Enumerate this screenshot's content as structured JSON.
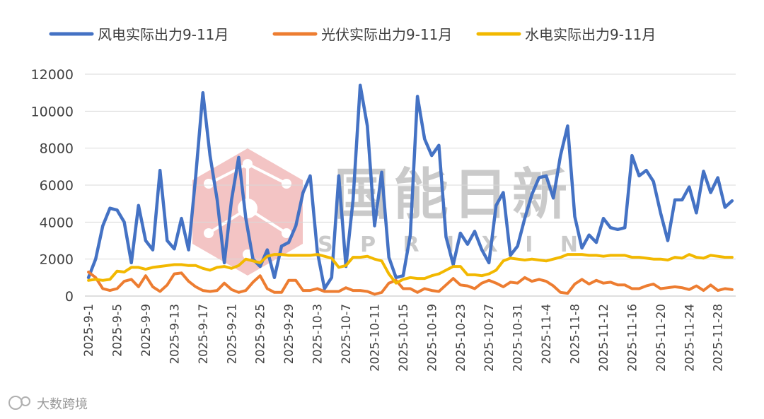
{
  "chart_data": {
    "type": "line",
    "title": "",
    "xlabel": "",
    "ylabel": "",
    "ylim": [
      0,
      12000
    ],
    "yticks": [
      "0",
      "2000",
      "4000",
      "6000",
      "8000",
      "10000",
      "12000"
    ],
    "grid": "horizontal",
    "legend_position": "top",
    "x_tick_labels": [
      "2025-9-1",
      "2025-9-5",
      "2025-9-9",
      "2025-9-13",
      "2025-9-17",
      "2025-9-21",
      "2025-9-25",
      "2025-9-29",
      "2025-10-3",
      "2025-10-7",
      "2025-10-11",
      "2025-10-15",
      "2025-10-19",
      "2025-10-23",
      "2025-10-27",
      "2025-10-31",
      "2025-11-4",
      "2025-11-8",
      "2025-11-12",
      "2025-11-16",
      "2025-11-20",
      "2025-11-24",
      "2025-11-28"
    ],
    "x": [
      "2025-9-1",
      "2025-9-2",
      "2025-9-3",
      "2025-9-4",
      "2025-9-5",
      "2025-9-6",
      "2025-9-7",
      "2025-9-8",
      "2025-9-9",
      "2025-9-10",
      "2025-9-11",
      "2025-9-12",
      "2025-9-13",
      "2025-9-14",
      "2025-9-15",
      "2025-9-16",
      "2025-9-17",
      "2025-9-18",
      "2025-9-19",
      "2025-9-20",
      "2025-9-21",
      "2025-9-22",
      "2025-9-23",
      "2025-9-24",
      "2025-9-25",
      "2025-9-26",
      "2025-9-27",
      "2025-9-28",
      "2025-9-29",
      "2025-9-30",
      "2025-10-1",
      "2025-10-2",
      "2025-10-3",
      "2025-10-4",
      "2025-10-5",
      "2025-10-6",
      "2025-10-7",
      "2025-10-8",
      "2025-10-9",
      "2025-10-10",
      "2025-10-11",
      "2025-10-12",
      "2025-10-13",
      "2025-10-14",
      "2025-10-15",
      "2025-10-16",
      "2025-10-17",
      "2025-10-18",
      "2025-10-19",
      "2025-10-20",
      "2025-10-21",
      "2025-10-22",
      "2025-10-23",
      "2025-10-24",
      "2025-10-25",
      "2025-10-26",
      "2025-10-27",
      "2025-10-28",
      "2025-10-29",
      "2025-10-30",
      "2025-10-31",
      "2025-11-1",
      "2025-11-2",
      "2025-11-3",
      "2025-11-4",
      "2025-11-5",
      "2025-11-6",
      "2025-11-7",
      "2025-11-8",
      "2025-11-9",
      "2025-11-10",
      "2025-11-11",
      "2025-11-12",
      "2025-11-13",
      "2025-11-14",
      "2025-11-15",
      "2025-11-16",
      "2025-11-17",
      "2025-11-18",
      "2025-11-19",
      "2025-11-20",
      "2025-11-21",
      "2025-11-22",
      "2025-11-23",
      "2025-11-24",
      "2025-11-25",
      "2025-11-26",
      "2025-11-27",
      "2025-11-28",
      "2025-11-29",
      "2025-11-30"
    ],
    "series": [
      {
        "name": "风电实际出力9-11月",
        "color": "#4472c4",
        "values": [
          1000,
          2000,
          3800,
          4750,
          4650,
          4000,
          1800,
          4900,
          3000,
          2500,
          6800,
          3000,
          2550,
          4200,
          2500,
          6500,
          11000,
          7600,
          5200,
          1800,
          5200,
          7500,
          4200,
          2000,
          1600,
          2500,
          1000,
          2700,
          2900,
          3800,
          5600,
          6500,
          2400,
          400,
          1000,
          6500,
          1600,
          5200,
          11400,
          9200,
          3800,
          6700,
          2100,
          1000,
          1100,
          3300,
          10800,
          8500,
          7600,
          8150,
          3200,
          1700,
          3400,
          2800,
          3500,
          2500,
          1800,
          4900,
          5600,
          2200,
          2700,
          4200,
          5500,
          6400,
          6500,
          5300,
          7600,
          9200,
          4300,
          2600,
          3300,
          2900,
          4200,
          3700,
          3600,
          3700,
          7600,
          6500,
          6800,
          6200,
          4500,
          3000,
          5200,
          5200,
          5900,
          4500,
          6750,
          5600,
          6400,
          4800,
          5150
        ]
      },
      {
        "name": "光伏实际出力9-11月",
        "color": "#ed7d31",
        "values": [
          1300,
          1000,
          400,
          300,
          400,
          800,
          900,
          500,
          1100,
          500,
          250,
          600,
          1200,
          1250,
          800,
          500,
          300,
          250,
          300,
          700,
          350,
          200,
          300,
          750,
          1100,
          400,
          200,
          200,
          850,
          850,
          300,
          300,
          400,
          250,
          250,
          250,
          450,
          300,
          300,
          250,
          100,
          200,
          700,
          850,
          400,
          400,
          200,
          400,
          300,
          250,
          600,
          950,
          600,
          550,
          400,
          700,
          850,
          700,
          500,
          750,
          700,
          1000,
          800,
          900,
          800,
          550,
          200,
          150,
          650,
          900,
          650,
          850,
          700,
          750,
          600,
          600,
          400,
          400,
          550,
          650,
          400,
          450,
          500,
          450,
          350,
          550,
          300,
          600,
          300,
          400,
          350
        ]
      },
      {
        "name": "水电实际出力9-11月",
        "color": "#f2b800",
        "values": [
          850,
          900,
          850,
          900,
          1350,
          1300,
          1550,
          1550,
          1450,
          1550,
          1600,
          1650,
          1700,
          1700,
          1650,
          1650,
          1500,
          1400,
          1550,
          1600,
          1500,
          1650,
          2000,
          1900,
          1800,
          2150,
          2250,
          2250,
          2200,
          2200,
          2200,
          2200,
          2250,
          2150,
          2050,
          1550,
          1650,
          2100,
          2100,
          2150,
          2000,
          1900,
          1200,
          700,
          900,
          1000,
          950,
          950,
          1100,
          1200,
          1400,
          1600,
          1600,
          1150,
          1150,
          1100,
          1200,
          1400,
          1900,
          2050,
          2000,
          1950,
          2000,
          1950,
          1900,
          2000,
          2100,
          2250,
          2250,
          2250,
          2200,
          2200,
          2150,
          2200,
          2200,
          2200,
          2100,
          2100,
          2050,
          2000,
          2000,
          1950,
          2100,
          2050,
          2250,
          2100,
          2050,
          2200,
          2150,
          2100,
          2100
        ]
      }
    ]
  },
  "watermark": {
    "main_text": "国能日新",
    "sub_text": "S P R I X I N",
    "logo_color": "#e88a8a",
    "footer_text": "大数跨境"
  }
}
